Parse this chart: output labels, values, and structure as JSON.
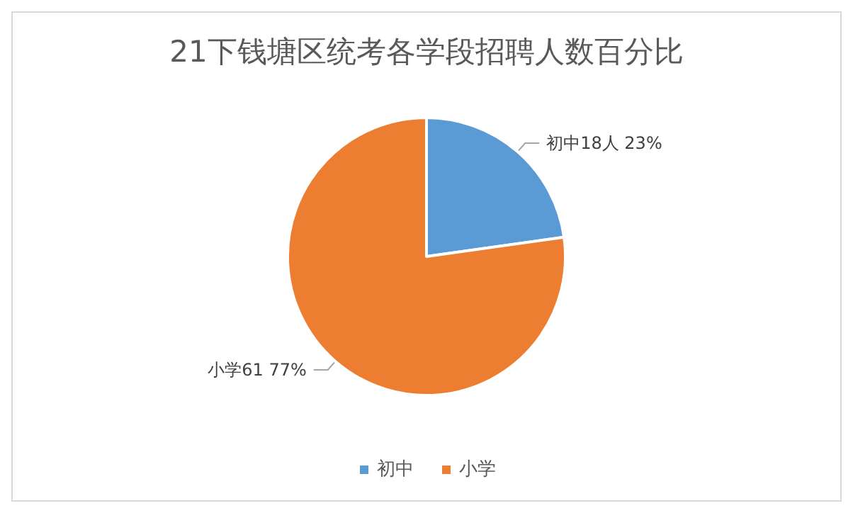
{
  "chart_data": {
    "type": "pie",
    "title": "21下钱塘区统考各学段招聘人数百分比",
    "categories": [
      "初中",
      "小学"
    ],
    "values": [
      18,
      61
    ],
    "colors": [
      "#5b9bd5",
      "#ed7d31"
    ],
    "value_labels": [
      "初中18人 23%",
      "小学61 77%"
    ],
    "legend": "bottom"
  }
}
